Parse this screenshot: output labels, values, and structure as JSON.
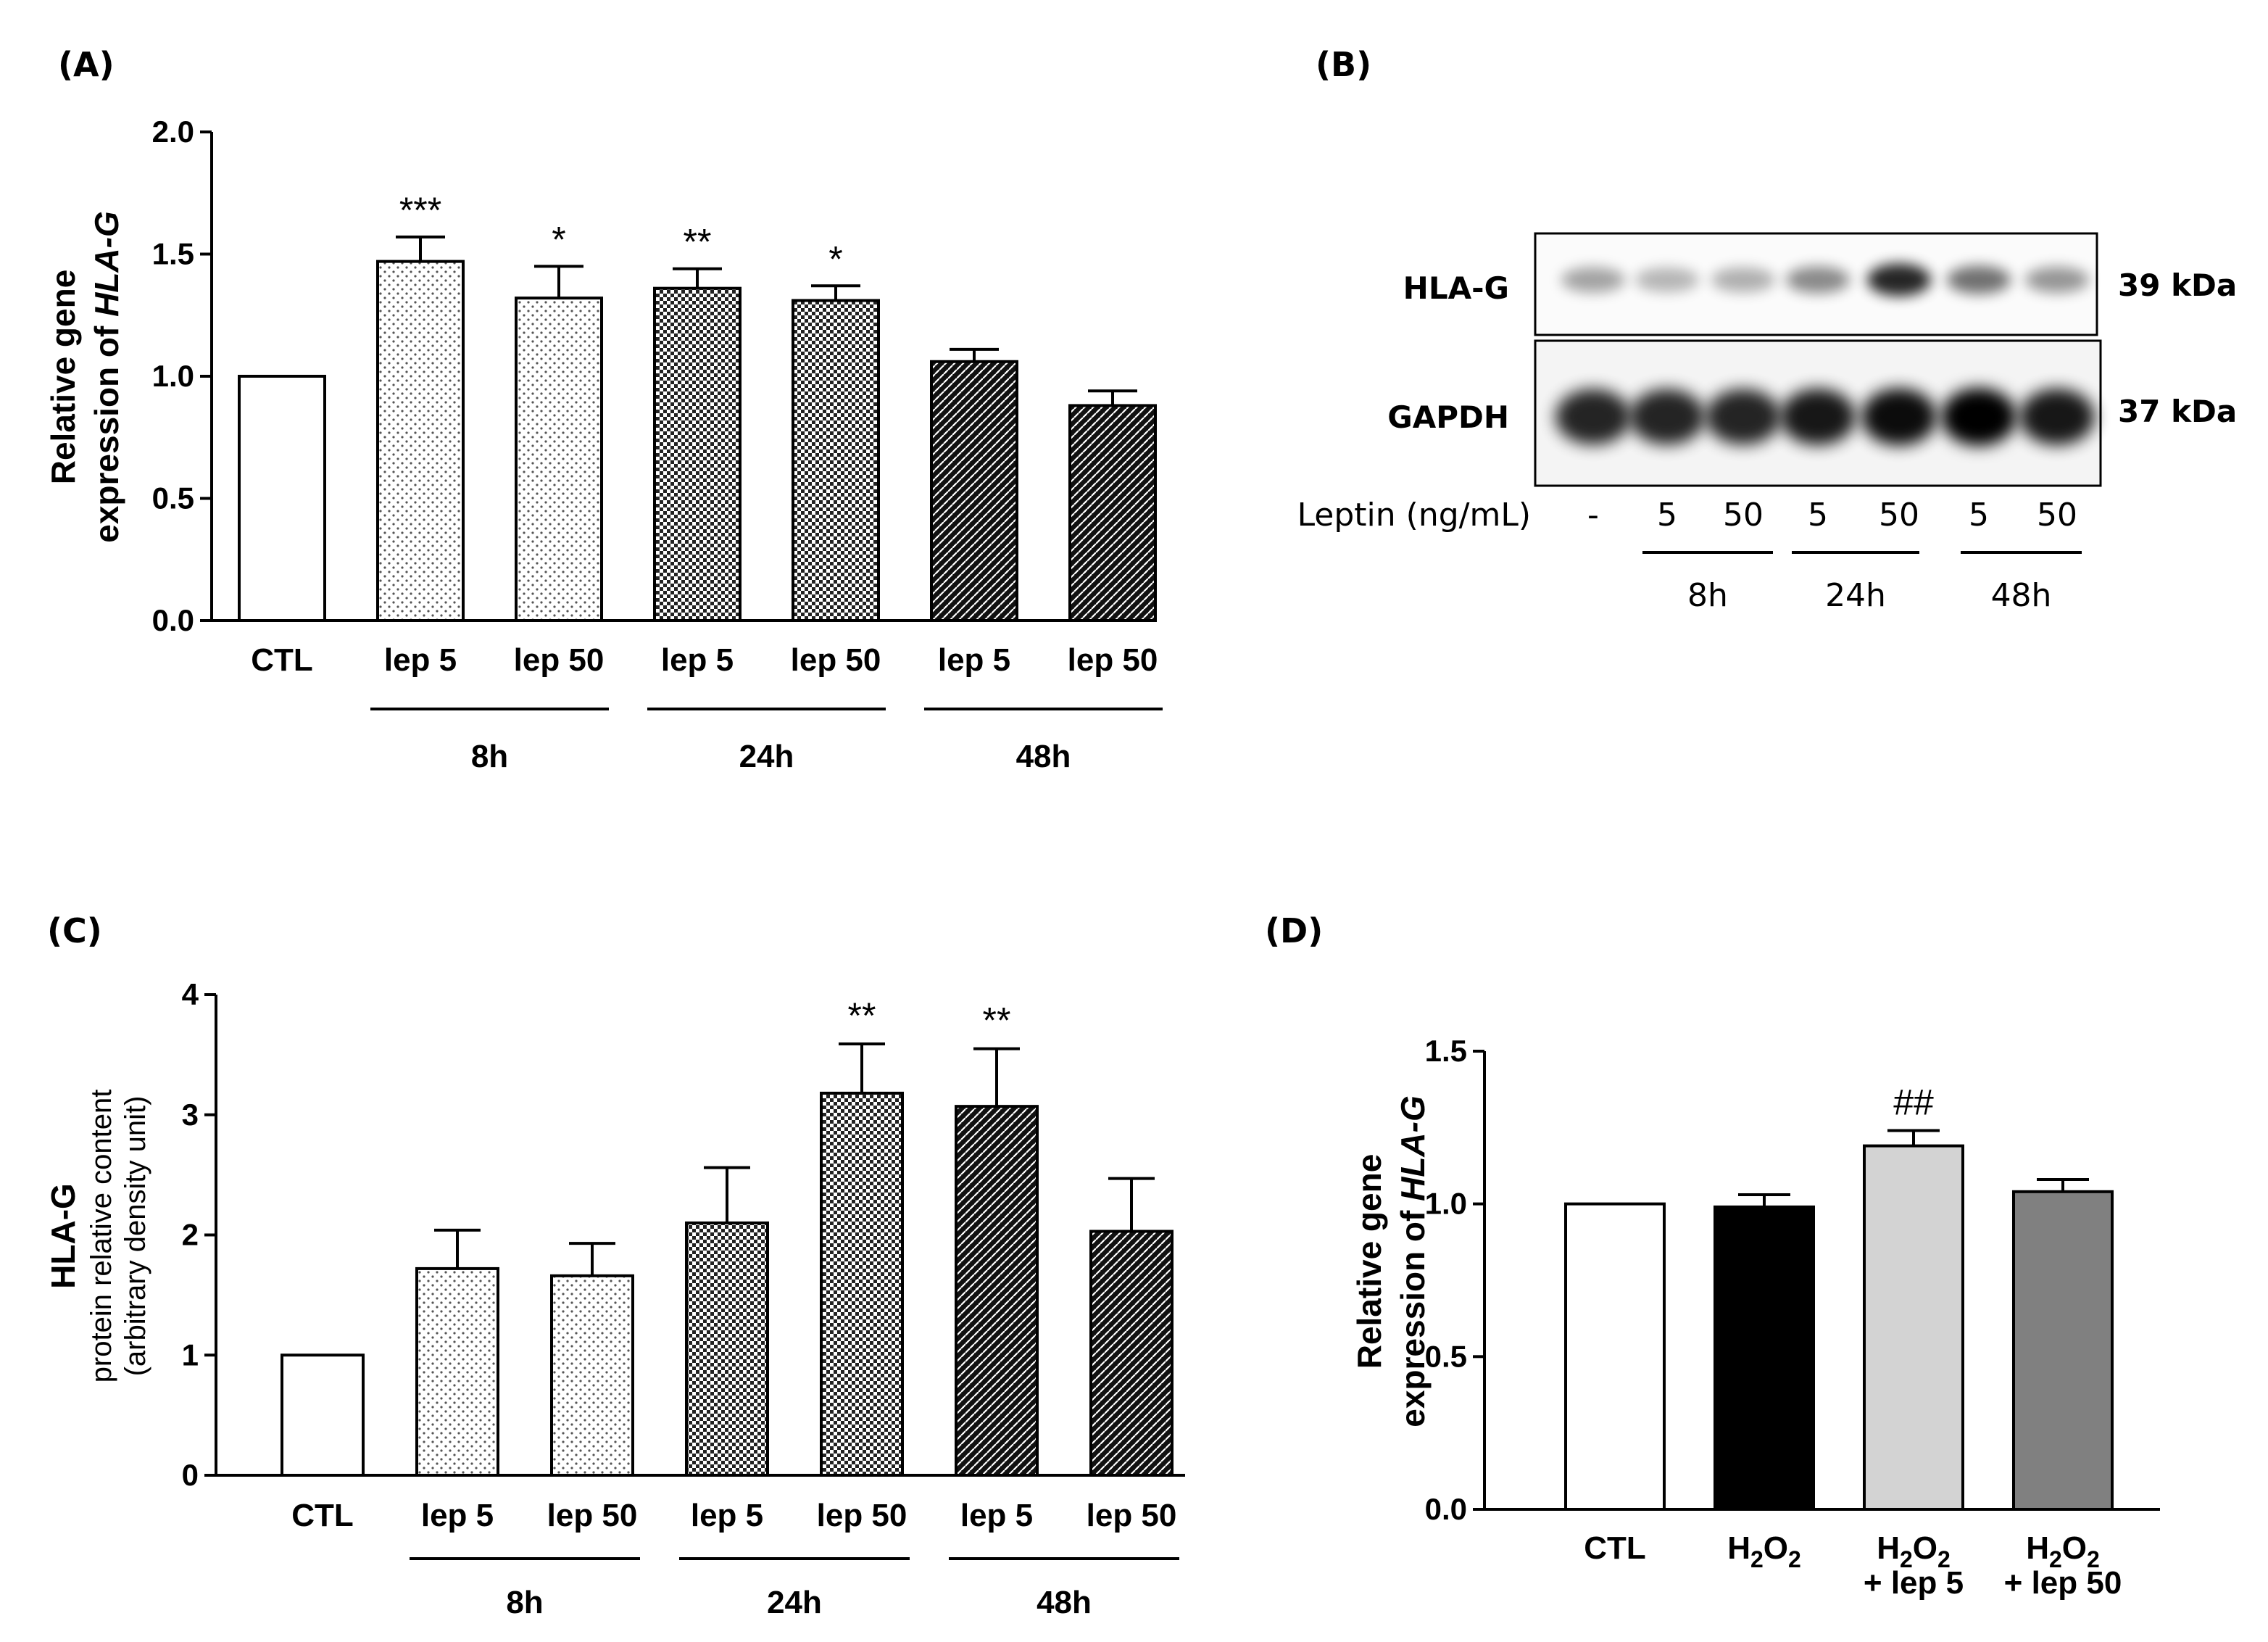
{
  "panels": {
    "A": "(A)",
    "B": "(B)",
    "C": "(C)",
    "D": "(D)"
  },
  "chart_data": [
    {
      "id": "A",
      "type": "bar",
      "ylabel_line1": "Relative gene",
      "ylabel_line2_prefix": "expression of ",
      "ylabel_gene": "HLA-G",
      "ylim": [
        0,
        2.0
      ],
      "yticks": [
        "0.0",
        "0.5",
        "1.0",
        "1.5",
        "2.0"
      ],
      "categories": [
        "CTL",
        "lep 5",
        "lep 50",
        "lep 5",
        "lep 50",
        "lep 5",
        "lep 50"
      ],
      "values": [
        1.0,
        1.47,
        1.32,
        1.36,
        1.31,
        1.06,
        0.88
      ],
      "errors": [
        0,
        0.1,
        0.13,
        0.08,
        0.06,
        0.05,
        0.06
      ],
      "patterns": [
        "white",
        "dots",
        "dots",
        "checker",
        "checker",
        "dense",
        "dense"
      ],
      "significance": [
        "",
        "***",
        "*",
        "**",
        "*",
        "",
        ""
      ],
      "groups": [
        {
          "label": "8h",
          "from": 1,
          "to": 2
        },
        {
          "label": "24h",
          "from": 3,
          "to": 4
        },
        {
          "label": "48h",
          "from": 5,
          "to": 6
        }
      ]
    },
    {
      "id": "C",
      "type": "bar",
      "ylabel_line1": "HLA-G",
      "ylabel_line2": "protein relative content",
      "ylabel_line3": "(arbitrary density unit)",
      "ylim": [
        0,
        4
      ],
      "yticks": [
        "0",
        "1",
        "2",
        "3",
        "4"
      ],
      "categories": [
        "CTL",
        "lep 5",
        "lep 50",
        "lep 5",
        "lep 50",
        "lep 5",
        "lep 50"
      ],
      "values": [
        1.0,
        1.72,
        1.66,
        2.1,
        3.18,
        3.07,
        2.03
      ],
      "errors": [
        0,
        0.32,
        0.27,
        0.46,
        0.41,
        0.48,
        0.44
      ],
      "patterns": [
        "white",
        "dots",
        "dots",
        "checker",
        "checker",
        "dense",
        "dense"
      ],
      "significance": [
        "",
        "",
        "",
        "",
        "**",
        "**",
        ""
      ],
      "groups": [
        {
          "label": "8h",
          "from": 1,
          "to": 2
        },
        {
          "label": "24h",
          "from": 3,
          "to": 4
        },
        {
          "label": "48h",
          "from": 5,
          "to": 6
        }
      ]
    },
    {
      "id": "D",
      "type": "bar",
      "ylabel_line1": "Relative gene",
      "ylabel_line2_prefix": "expression of ",
      "ylabel_gene": "HLA-G",
      "ylim": [
        0,
        1.5
      ],
      "yticks": [
        "0.0",
        "0.5",
        "1.0",
        "1.5"
      ],
      "categories": [
        "CTL",
        "H2O2",
        "H2O2 + lep 5",
        "H2O2 + lep 50"
      ],
      "values": [
        1.0,
        0.99,
        1.19,
        1.04
      ],
      "errors": [
        0,
        0.04,
        0.05,
        0.04
      ],
      "colors": [
        "#ffffff",
        "#000000",
        "#d3d3d3",
        "#808080"
      ],
      "significance": [
        "",
        "",
        "##",
        ""
      ],
      "label_parts": {
        "h": "H",
        "two": "2",
        "o": "O",
        "plus_lep5": "+ lep 5",
        "plus_lep50": "+ lep 50"
      }
    }
  ],
  "blot": {
    "bands": [
      {
        "name": "HLA-G",
        "size": "39 kDa",
        "intensities": [
          0.35,
          0.28,
          0.3,
          0.45,
          0.85,
          0.55,
          0.4
        ]
      },
      {
        "name": "GAPDH",
        "size": "37 kDa",
        "intensities": [
          0.85,
          0.85,
          0.85,
          0.9,
          0.95,
          1.0,
          0.9
        ]
      }
    ],
    "leptin_label": "Leptin (ng/mL)",
    "doses": [
      "-",
      "5",
      "50",
      "5",
      "50",
      "5",
      "50"
    ],
    "times": [
      "8h",
      "24h",
      "48h"
    ]
  }
}
